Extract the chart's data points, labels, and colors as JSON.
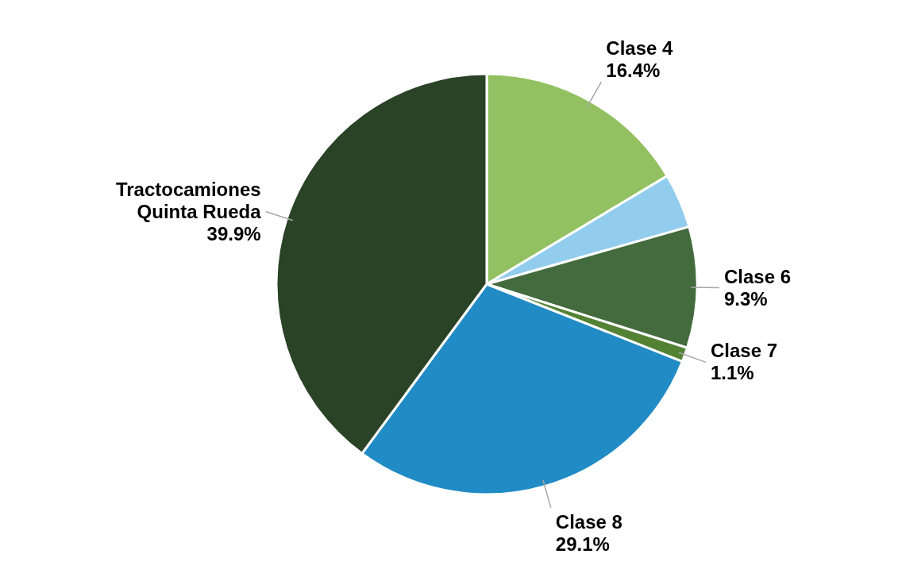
{
  "chart_data": {
    "type": "pie",
    "categories": [
      "Clase 4",
      null,
      "Clase 6",
      "Clase 7",
      "Clase 8",
      "Tractocamiones Quinta Rueda"
    ],
    "values": [
      16.4,
      4.2,
      9.3,
      1.1,
      29.1,
      39.9
    ],
    "value_labels": [
      "16.4%",
      null,
      "9.3%",
      "1.1%",
      "29.1%",
      "39.9%"
    ],
    "colors": [
      "#93c162",
      "#92cdee",
      "#436b3e",
      "#548235",
      "#218bc5",
      "#2a4226"
    ],
    "legend": false
  }
}
